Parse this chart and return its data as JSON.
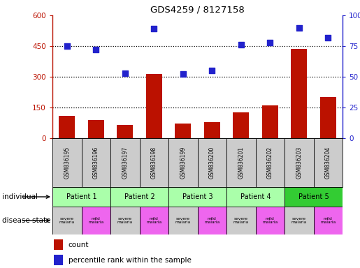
{
  "title": "GDS4259 / 8127158",
  "samples": [
    "GSM836195",
    "GSM836196",
    "GSM836197",
    "GSM836198",
    "GSM836199",
    "GSM836200",
    "GSM836201",
    "GSM836202",
    "GSM836203",
    "GSM836204"
  ],
  "counts": [
    110,
    90,
    65,
    315,
    70,
    80,
    125,
    160,
    435,
    200
  ],
  "percentiles": [
    75,
    72,
    53,
    89,
    52,
    55,
    76,
    78,
    90,
    82
  ],
  "patients": [
    {
      "label": "Patient 1",
      "start": 0,
      "end": 2,
      "color": "#aaffaa"
    },
    {
      "label": "Patient 2",
      "start": 2,
      "end": 4,
      "color": "#aaffaa"
    },
    {
      "label": "Patient 3",
      "start": 4,
      "end": 6,
      "color": "#aaffaa"
    },
    {
      "label": "Patient 4",
      "start": 6,
      "end": 8,
      "color": "#aaffaa"
    },
    {
      "label": "Patient 5",
      "start": 8,
      "end": 10,
      "color": "#33cc33"
    }
  ],
  "disease_states": [
    {
      "label": "severe\nmalaria",
      "color": "#cccccc"
    },
    {
      "label": "mild\nmalaria",
      "color": "#ee66ee"
    },
    {
      "label": "severe\nmalaria",
      "color": "#cccccc"
    },
    {
      "label": "mild\nmalaria",
      "color": "#ee66ee"
    },
    {
      "label": "severe\nmalaria",
      "color": "#cccccc"
    },
    {
      "label": "mild\nmalaria",
      "color": "#ee66ee"
    },
    {
      "label": "severe\nmalaria",
      "color": "#cccccc"
    },
    {
      "label": "mild\nmalaria",
      "color": "#ee66ee"
    },
    {
      "label": "severe\nmalaria",
      "color": "#cccccc"
    },
    {
      "label": "mild\nmalaria",
      "color": "#ee66ee"
    }
  ],
  "left_ylim": [
    0,
    600
  ],
  "right_ylim": [
    0,
    100
  ],
  "left_yticks": [
    0,
    150,
    300,
    450,
    600
  ],
  "right_yticks": [
    0,
    25,
    50,
    75,
    100
  ],
  "left_yticklabels": [
    "0",
    "150",
    "300",
    "450",
    "600"
  ],
  "right_yticklabels": [
    "0",
    "25",
    "50",
    "75",
    "100%"
  ],
  "bar_color": "#bb1100",
  "scatter_color": "#2222cc",
  "individual_label": "individual",
  "disease_state_label": "disease state",
  "legend_count": "count",
  "legend_percentile": "percentile rank within the sample",
  "grid_lines": [
    150,
    300,
    450
  ],
  "sample_box_color": "#cccccc",
  "fig_width": 5.15,
  "fig_height": 3.84,
  "dpi": 100
}
